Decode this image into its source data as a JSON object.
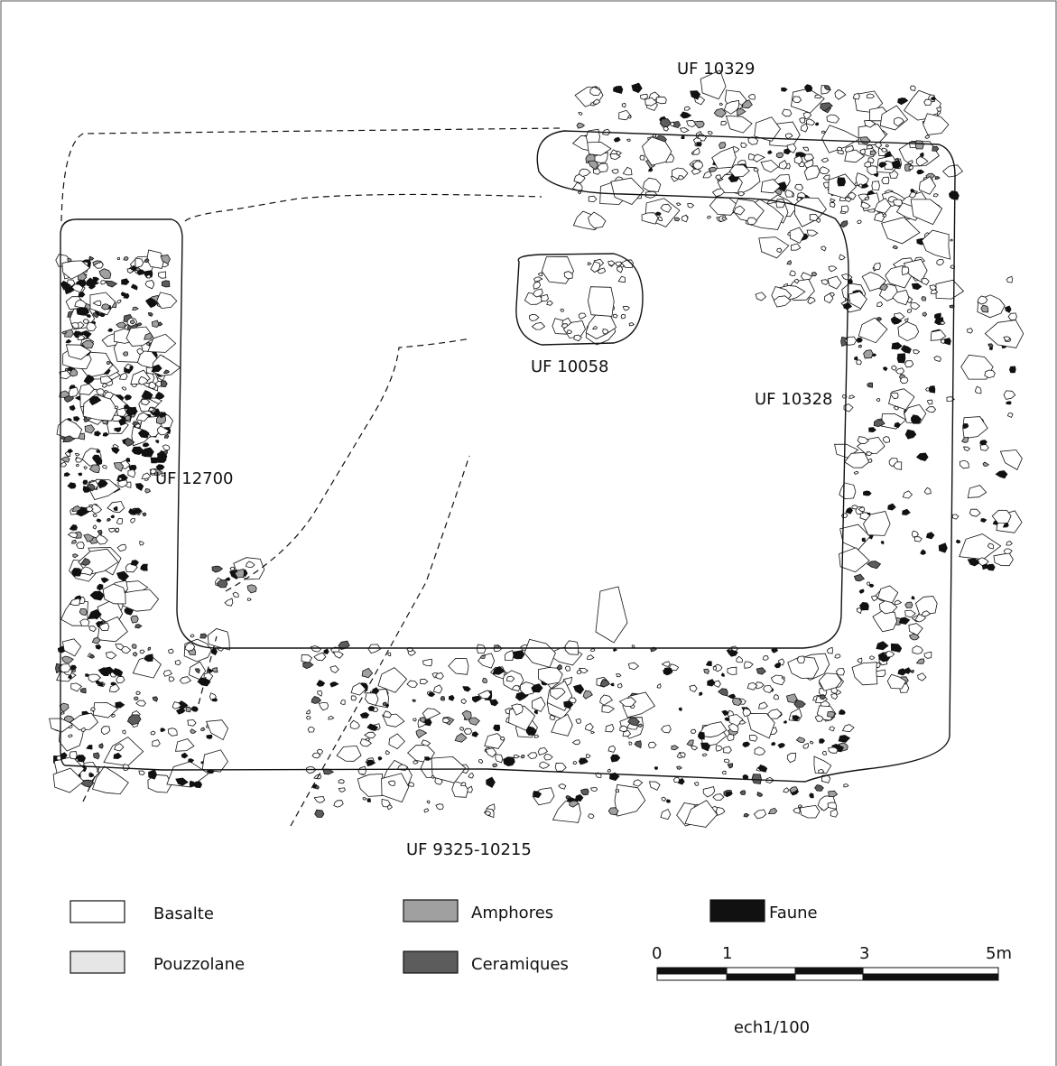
{
  "labels": {
    "uf_10329": "UF 10329",
    "uf_10058": "UF 10058",
    "uf_10328": "UF 10328",
    "uf_12700": "UF 12700",
    "uf_9325": "UF 9325-10215"
  },
  "legend": [
    {
      "label": "Basalte",
      "color": "#ffffff"
    },
    {
      "label": "Pouzzolane",
      "color": "#e6e6e6"
    },
    {
      "label": "Amphores",
      "color": "#a0a0a0"
    },
    {
      "label": "Ceramiques",
      "color": "#5c5c5c"
    },
    {
      "label": "Faune",
      "color": "#111111"
    }
  ],
  "scale": {
    "ticks": [
      "0",
      "1",
      "3",
      "5m"
    ],
    "caption": "ech1/100"
  }
}
